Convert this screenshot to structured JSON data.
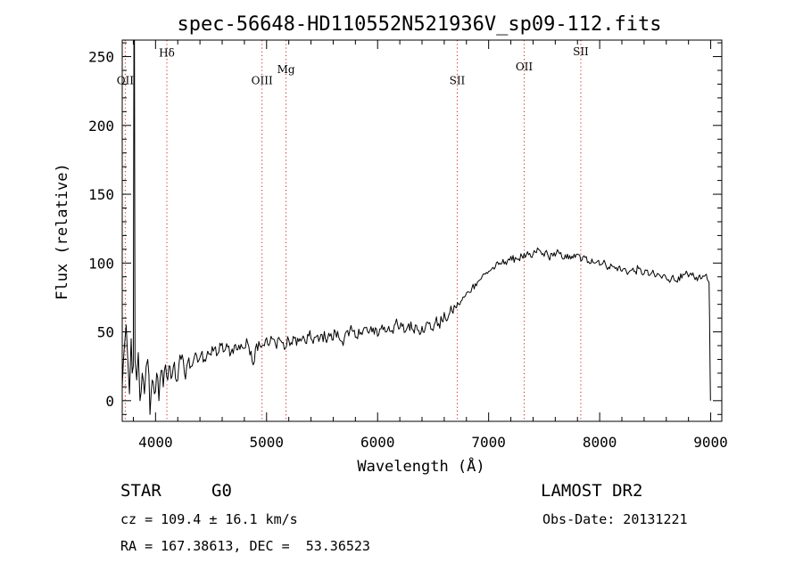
{
  "chart_data": {
    "type": "line",
    "title": "spec-56648-HD110552N521936V_sp09-112.fits",
    "xlabel": "Wavelength (Å)",
    "ylabel": "Flux (relative)",
    "xlim": [
      3700,
      9100
    ],
    "ylim": [
      -15,
      262
    ],
    "xticks": [
      4000,
      5000,
      6000,
      7000,
      8000,
      9000
    ],
    "yticks": [
      0,
      50,
      100,
      150,
      200,
      250
    ],
    "line_color": "#000000",
    "marker_color": "#cc2222",
    "spectrum": [
      [
        3700,
        10
      ],
      [
        3720,
        40
      ],
      [
        3735,
        55
      ],
      [
        3750,
        30
      ],
      [
        3765,
        5
      ],
      [
        3780,
        45
      ],
      [
        3790,
        20
      ],
      [
        3800,
        25
      ],
      [
        3805,
        262
      ],
      [
        3810,
        262
      ],
      [
        3815,
        30
      ],
      [
        3830,
        15
      ],
      [
        3845,
        35
      ],
      [
        3860,
        0
      ],
      [
        3880,
        20
      ],
      [
        3900,
        5
      ],
      [
        3915,
        25
      ],
      [
        3930,
        30
      ],
      [
        3950,
        -10
      ],
      [
        3970,
        15
      ],
      [
        3990,
        5
      ],
      [
        4010,
        20
      ],
      [
        4030,
        0
      ],
      [
        4050,
        22
      ],
      [
        4070,
        10
      ],
      [
        4090,
        26
      ],
      [
        4110,
        15
      ],
      [
        4130,
        25
      ],
      [
        4150,
        18
      ],
      [
        4170,
        28
      ],
      [
        4190,
        14
      ],
      [
        4210,
        26
      ],
      [
        4230,
        30
      ],
      [
        4260,
        20
      ],
      [
        4290,
        28
      ],
      [
        4320,
        25
      ],
      [
        4350,
        32
      ],
      [
        4380,
        28
      ],
      [
        4410,
        34
      ],
      [
        4440,
        30
      ],
      [
        4470,
        36
      ],
      [
        4500,
        33
      ],
      [
        4530,
        38
      ],
      [
        4560,
        34
      ],
      [
        4590,
        40
      ],
      [
        4620,
        36
      ],
      [
        4650,
        39
      ],
      [
        4680,
        35
      ],
      [
        4710,
        40
      ],
      [
        4740,
        37
      ],
      [
        4770,
        41
      ],
      [
        4800,
        38
      ],
      [
        4830,
        42
      ],
      [
        4860,
        36
      ],
      [
        4880,
        26
      ],
      [
        4900,
        38
      ],
      [
        4930,
        43
      ],
      [
        4960,
        40
      ],
      [
        4990,
        44
      ],
      [
        5020,
        40
      ],
      [
        5050,
        45
      ],
      [
        5080,
        41
      ],
      [
        5110,
        46
      ],
      [
        5140,
        42
      ],
      [
        5170,
        38
      ],
      [
        5200,
        44
      ],
      [
        5230,
        41
      ],
      [
        5260,
        46
      ],
      [
        5290,
        43
      ],
      [
        5320,
        45
      ],
      [
        5350,
        42
      ],
      [
        5380,
        47
      ],
      [
        5410,
        44
      ],
      [
        5440,
        46
      ],
      [
        5470,
        43
      ],
      [
        5500,
        48
      ],
      [
        5530,
        45
      ],
      [
        5560,
        49
      ],
      [
        5590,
        44
      ],
      [
        5620,
        50
      ],
      [
        5650,
        46
      ],
      [
        5680,
        43
      ],
      [
        5710,
        49
      ],
      [
        5740,
        47
      ],
      [
        5770,
        51
      ],
      [
        5800,
        46
      ],
      [
        5830,
        52
      ],
      [
        5860,
        48
      ],
      [
        5890,
        53
      ],
      [
        5920,
        49
      ],
      [
        5950,
        50
      ],
      [
        5980,
        53
      ],
      [
        6010,
        48
      ],
      [
        6040,
        55
      ],
      [
        6070,
        50
      ],
      [
        6100,
        54
      ],
      [
        6130,
        51
      ],
      [
        6160,
        56
      ],
      [
        6190,
        52
      ],
      [
        6220,
        54
      ],
      [
        6250,
        50
      ],
      [
        6280,
        56
      ],
      [
        6310,
        52
      ],
      [
        6340,
        55
      ],
      [
        6370,
        51
      ],
      [
        6400,
        54
      ],
      [
        6430,
        53
      ],
      [
        6460,
        56
      ],
      [
        6490,
        52
      ],
      [
        6520,
        57
      ],
      [
        6550,
        56
      ],
      [
        6580,
        58
      ],
      [
        6610,
        60
      ],
      [
        6640,
        62
      ],
      [
        6670,
        65
      ],
      [
        6700,
        68
      ],
      [
        6730,
        70
      ],
      [
        6760,
        73
      ],
      [
        6790,
        76
      ],
      [
        6820,
        79
      ],
      [
        6850,
        82
      ],
      [
        6880,
        85
      ],
      [
        6910,
        87
      ],
      [
        6940,
        90
      ],
      [
        6970,
        92
      ],
      [
        7000,
        94
      ],
      [
        7030,
        96
      ],
      [
        7060,
        97
      ],
      [
        7090,
        99
      ],
      [
        7120,
        100
      ],
      [
        7150,
        101
      ],
      [
        7180,
        103
      ],
      [
        7210,
        102
      ],
      [
        7240,
        104
      ],
      [
        7270,
        103
      ],
      [
        7300,
        105
      ],
      [
        7330,
        104
      ],
      [
        7360,
        106
      ],
      [
        7390,
        104
      ],
      [
        7420,
        108
      ],
      [
        7450,
        110
      ],
      [
        7480,
        106
      ],
      [
        7510,
        108
      ],
      [
        7540,
        104
      ],
      [
        7570,
        107
      ],
      [
        7600,
        105
      ],
      [
        7630,
        108
      ],
      [
        7660,
        104
      ],
      [
        7690,
        106
      ],
      [
        7720,
        103
      ],
      [
        7750,
        105
      ],
      [
        7780,
        104
      ],
      [
        7810,
        106
      ],
      [
        7840,
        102
      ],
      [
        7870,
        104
      ],
      [
        7900,
        101
      ],
      [
        7930,
        103
      ],
      [
        7960,
        100
      ],
      [
        7990,
        102
      ],
      [
        8020,
        99
      ],
      [
        8050,
        100
      ],
      [
        8080,
        97
      ],
      [
        8110,
        98
      ],
      [
        8140,
        96
      ],
      [
        8170,
        97
      ],
      [
        8200,
        94
      ],
      [
        8230,
        96
      ],
      [
        8260,
        93
      ],
      [
        8290,
        95
      ],
      [
        8320,
        94
      ],
      [
        8350,
        96
      ],
      [
        8380,
        92
      ],
      [
        8410,
        95
      ],
      [
        8440,
        91
      ],
      [
        8470,
        93
      ],
      [
        8500,
        90
      ],
      [
        8530,
        92
      ],
      [
        8560,
        89
      ],
      [
        8590,
        91
      ],
      [
        8620,
        88
      ],
      [
        8650,
        90
      ],
      [
        8680,
        87
      ],
      [
        8710,
        90
      ],
      [
        8740,
        89
      ],
      [
        8770,
        92
      ],
      [
        8800,
        90
      ],
      [
        8830,
        91
      ],
      [
        8860,
        88
      ],
      [
        8890,
        90
      ],
      [
        8920,
        89
      ],
      [
        8950,
        91
      ],
      [
        8970,
        88
      ],
      [
        8985,
        86
      ],
      [
        8990,
        60
      ],
      [
        8995,
        20
      ],
      [
        8998,
        0
      ]
    ],
    "line_markers": [
      {
        "label": "OII",
        "x": 3727,
        "label_y": 230
      },
      {
        "label": "Hδ",
        "x": 4102,
        "label_y": 250
      },
      {
        "label": "OIII",
        "x": 4959,
        "label_y": 230
      },
      {
        "label": "Mg",
        "x": 5175,
        "label_y": 238
      },
      {
        "label": "SII",
        "x": 6717,
        "label_y": 230
      },
      {
        "label": "OII",
        "x": 7320,
        "label_y": 240
      },
      {
        "label": "SII",
        "x": 7830,
        "label_y": 251
      }
    ]
  },
  "info": {
    "object_class": "STAR",
    "subclass": "G0",
    "survey": "LAMOST DR2",
    "velocity": "cz = 109.4 ± 16.1 km/s",
    "obs_date": "Obs-Date: 20131221",
    "coords": "RA = 167.38613, DEC =  53.36523"
  }
}
